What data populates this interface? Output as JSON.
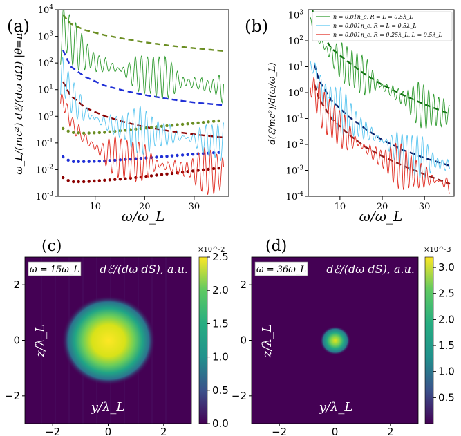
{
  "panels": {
    "a": {
      "letter": "(a)"
    },
    "b": {
      "letter": "(b)"
    },
    "c": {
      "letter": "(c)"
    },
    "d": {
      "letter": "(d)"
    }
  },
  "colors": {
    "green_sim": "#2e9a2e",
    "blue_sim": "#5bc6f0",
    "red_sim": "#e02b20",
    "green_dash": "#6b8e23",
    "blue_dash": "#1f2fd6",
    "red_dash": "#8b0000",
    "green_dash_b": "#0b6b0b",
    "blue_dash_b": "#0a1f6a",
    "red_dash_b": "#8b1a1a",
    "heat_bg": "#440154"
  },
  "chart_data": [
    {
      "type": "line",
      "panel": "a",
      "ylabel": "ω_L/(mc²) dℰ/(dω dΩ) |θ=π",
      "xlabel": "ω/ω_L",
      "xlim": [
        2.5,
        37
      ],
      "ylim_log10": [
        -3,
        4
      ],
      "yscale": "log",
      "xticks": [
        10,
        20,
        30
      ],
      "yticks": [
        "10^-3",
        "10^-2",
        "10^-1",
        "10^0",
        "10^1",
        "10^2",
        "10^3",
        "10^4"
      ],
      "series": [
        {
          "color": "green",
          "style": "dashed",
          "x": [
            3.5,
            5,
            8,
            12,
            16,
            20,
            25,
            30,
            36
          ],
          "y": [
            6500,
            3000,
            1700,
            1100,
            800,
            600,
            450,
            360,
            280
          ]
        },
        {
          "color": "blue",
          "style": "dashed",
          "x": [
            3.5,
            5,
            8,
            12,
            16,
            20,
            25,
            30,
            36
          ],
          "y": [
            300,
            75,
            30,
            14,
            9,
            6.3,
            4.4,
            3.3,
            2.6
          ]
        },
        {
          "color": "red",
          "style": "dashed",
          "x": [
            3.5,
            5,
            8,
            12,
            16,
            20,
            25,
            30,
            36
          ],
          "y": [
            20,
            6,
            2.1,
            1.0,
            0.6,
            0.4,
            0.28,
            0.21,
            0.16
          ]
        },
        {
          "color": "green",
          "style": "dotted",
          "x": [
            3.5,
            5,
            8,
            12,
            16,
            20,
            25,
            30,
            36
          ],
          "y": [
            0.35,
            0.25,
            0.23,
            0.25,
            0.3,
            0.36,
            0.45,
            0.55,
            0.7
          ]
        },
        {
          "color": "blue",
          "style": "dotted",
          "x": [
            3.5,
            5,
            8,
            12,
            16,
            20,
            25,
            30,
            36
          ],
          "y": [
            0.03,
            0.02,
            0.02,
            0.021,
            0.024,
            0.027,
            0.032,
            0.038,
            0.045
          ]
        },
        {
          "color": "red",
          "style": "dotted",
          "x": [
            3.5,
            5,
            8,
            12,
            16,
            20,
            25,
            30,
            36
          ],
          "y": [
            0.005,
            0.0035,
            0.0035,
            0.004,
            0.0045,
            0.0055,
            0.007,
            0.009,
            0.012
          ]
        },
        {
          "color": "green",
          "style": "oscillating",
          "x": [
            3,
            3.5,
            4,
            5,
            6,
            8,
            10,
            12,
            15,
            18,
            21,
            24,
            27,
            30,
            33,
            36
          ],
          "y": [
            500,
            4000,
            2500,
            1200,
            600,
            300,
            150,
            120,
            80,
            60,
            50,
            40,
            30,
            25,
            20,
            18
          ]
        },
        {
          "color": "lightblue",
          "style": "oscillating",
          "x": [
            3,
            3.5,
            4,
            5,
            6,
            8,
            10,
            12,
            15,
            18,
            21,
            24,
            27,
            30,
            33,
            36
          ],
          "y": [
            20,
            60,
            30,
            10,
            5,
            2,
            1.2,
            0.8,
            0.6,
            0.45,
            0.35,
            0.3,
            0.25,
            0.2,
            0.18,
            0.15
          ]
        },
        {
          "color": "red",
          "style": "oscillating",
          "x": [
            3,
            3.5,
            4,
            5,
            6,
            8,
            10,
            12,
            15,
            18,
            21,
            24,
            27,
            30,
            33,
            36
          ],
          "y": [
            2,
            8,
            3,
            1,
            0.5,
            0.2,
            0.1,
            0.06,
            0.04,
            0.03,
            0.025,
            0.02,
            0.016,
            0.014,
            0.012,
            0.01
          ]
        }
      ]
    },
    {
      "type": "line",
      "panel": "b",
      "ylabel": "d(ℰ/mc²)/d(ω/ω_L)",
      "xlabel": "ω/ω_L",
      "xlim": [
        2.5,
        37
      ],
      "ylim_log10": [
        -4,
        3.2
      ],
      "yscale": "log",
      "xticks": [
        10,
        20,
        30
      ],
      "yticks": [
        "10^-4",
        "10^-3",
        "10^-2",
        "10^-1",
        "10^0",
        "10^1",
        "10^2",
        "10^3"
      ],
      "legend": {
        "placement": "top-right",
        "entries": [
          {
            "label": "n = 0.01n_c, R = L = 0.5λ_L",
            "color": "green"
          },
          {
            "label": "n = 0.001n_c, R = L = 0.5λ_L",
            "color": "lightblue"
          },
          {
            "label": "n = 0.001n_c, R = 0.25λ_L, L = 0.5λ_L",
            "color": "red"
          }
        ]
      },
      "series": [
        {
          "color": "green",
          "style": "dashed",
          "x": [
            3.5,
            5,
            8,
            12,
            16,
            20,
            25,
            30,
            36
          ],
          "y": [
            1500,
            300,
            50,
            15,
            5,
            2,
            0.8,
            0.35,
            0.15
          ]
        },
        {
          "color": "blue",
          "style": "dashed",
          "x": [
            4,
            5,
            8,
            12,
            16,
            20,
            25,
            30,
            36
          ],
          "y": [
            12,
            3,
            0.5,
            0.12,
            0.04,
            0.015,
            0.006,
            0.003,
            0.0015
          ]
        },
        {
          "color": "red",
          "style": "dashed",
          "x": [
            4,
            5,
            8,
            12,
            16,
            20,
            25,
            30,
            36
          ],
          "y": [
            2,
            0.6,
            0.1,
            0.025,
            0.008,
            0.0035,
            0.0015,
            0.0007,
            0.0003
          ]
        },
        {
          "color": "green",
          "style": "oscillating",
          "x": [
            3,
            4,
            6,
            8,
            12,
            16,
            20,
            25,
            30,
            36
          ],
          "y": [
            600,
            300,
            100,
            40,
            15,
            6,
            2.5,
            0.9,
            0.4,
            0.2
          ]
        },
        {
          "color": "lightblue",
          "style": "oscillating",
          "x": [
            3,
            4,
            6,
            8,
            12,
            16,
            20,
            25,
            30,
            36
          ],
          "y": [
            20,
            10,
            1.5,
            0.6,
            0.15,
            0.05,
            0.02,
            0.008,
            0.004,
            0.002
          ]
        },
        {
          "color": "red",
          "style": "oscillating",
          "x": [
            3,
            4,
            6,
            8,
            12,
            16,
            20,
            25,
            30,
            36
          ],
          "y": [
            3,
            1.5,
            0.3,
            0.12,
            0.03,
            0.01,
            0.004,
            0.0018,
            0.0008,
            0.0004
          ]
        }
      ]
    },
    {
      "type": "heatmap",
      "panel": "c",
      "label": "ω = 15ω_L",
      "quantity_label": "dℰ/(dω dS), a.u.",
      "xlabel": "y/λ_L",
      "ylabel": "z/λ_L",
      "xlim": [
        -3,
        3
      ],
      "ylim": [
        -3,
        3
      ],
      "xticks": [
        -2,
        0,
        2
      ],
      "yticks": [
        -2,
        0,
        2
      ],
      "spot_center": [
        0,
        0
      ],
      "spot_radius": 1.3,
      "colorbar": {
        "multiplier": "×10^-2",
        "ticks": [
          "0.0",
          "0.5",
          "1.0",
          "1.5",
          "2.0",
          "2.5"
        ],
        "range": [
          0,
          2.5
        ]
      }
    },
    {
      "type": "heatmap",
      "panel": "d",
      "label": "ω = 36ω_L",
      "quantity_label": "dℰ/(dω dS), a.u.",
      "xlabel": "y/λ_L",
      "ylabel": "z/λ_L",
      "xlim": [
        -3,
        3
      ],
      "ylim": [
        -3,
        3
      ],
      "xticks": [
        -2,
        0,
        2
      ],
      "yticks": [
        -2,
        0,
        2
      ],
      "spot_center": [
        0,
        0
      ],
      "spot_radius": 0.45,
      "colorbar": {
        "multiplier": "×10^-3",
        "ticks": [
          "0.5",
          "1.0",
          "1.5",
          "2.0",
          "2.5",
          "3.0"
        ],
        "range": [
          0,
          3.2
        ]
      }
    }
  ]
}
